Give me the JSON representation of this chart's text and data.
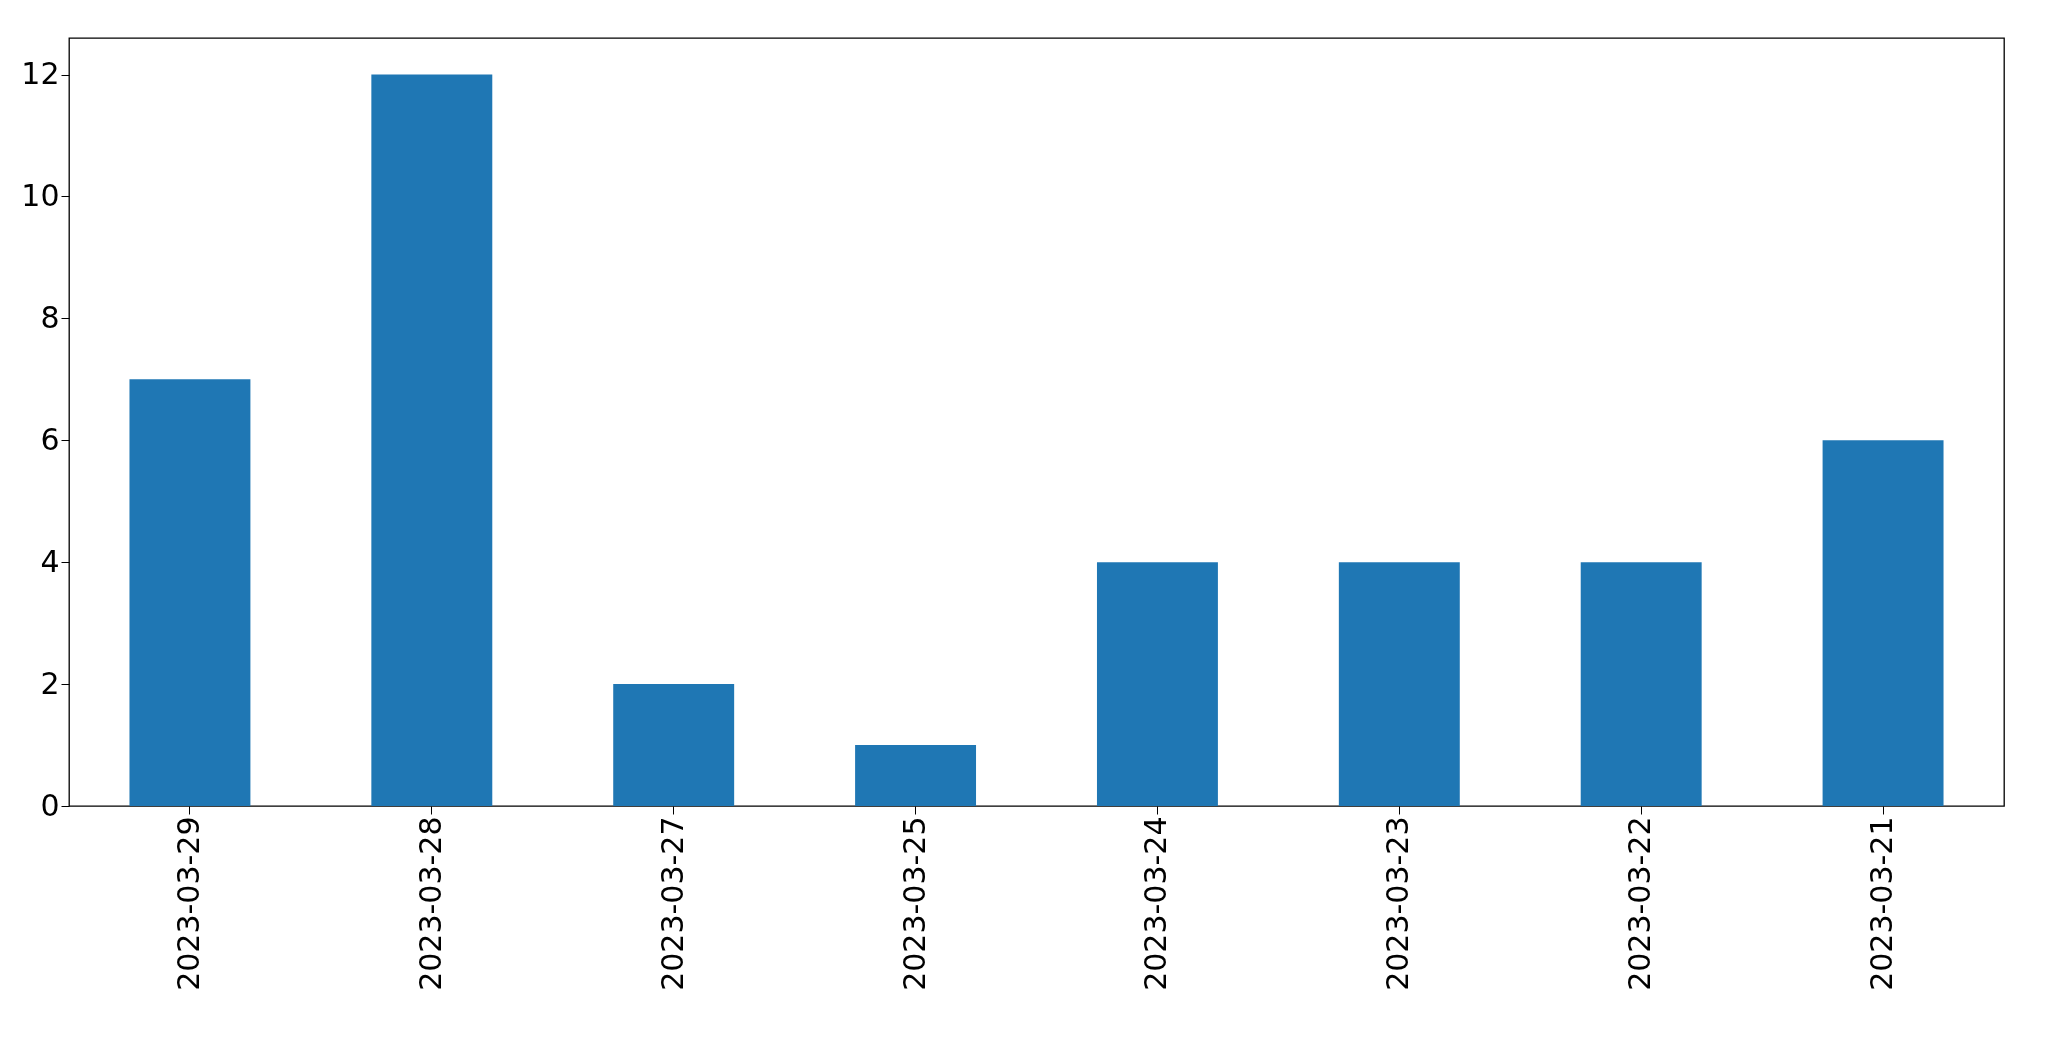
{
  "chart_data": {
    "type": "bar",
    "categories": [
      "2023-03-29",
      "2023-03-28",
      "2023-03-27",
      "2023-03-25",
      "2023-03-24",
      "2023-03-23",
      "2023-03-22",
      "2023-03-21"
    ],
    "values": [
      7,
      12,
      2,
      1,
      4,
      4,
      4,
      6
    ],
    "color": "#1f77b4",
    "ylim": [
      0,
      12.6
    ],
    "yticks": [
      0,
      2,
      4,
      6,
      8,
      10,
      12
    ],
    "grid": false
  }
}
